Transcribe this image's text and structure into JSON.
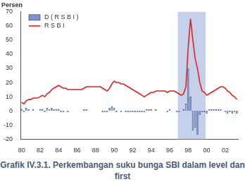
{
  "chart_data": {
    "type": "bar",
    "title": "Persen",
    "caption": "Grafik IV.3.1. Perkembangan suku bunga SBI dalam level dan first",
    "categories": [
      "80",
      null,
      null,
      null,
      null,
      null,
      null,
      null,
      "82",
      null,
      null,
      null,
      null,
      null,
      null,
      null,
      "84",
      null,
      null,
      null,
      null,
      null,
      null,
      null,
      "86",
      null,
      null,
      null,
      null,
      null,
      null,
      null,
      "88",
      null,
      null,
      null,
      null,
      null,
      null,
      null,
      "90",
      null,
      null,
      null,
      null,
      null,
      null,
      null,
      "92",
      null,
      null,
      null,
      null,
      null,
      null,
      null,
      "94",
      null,
      null,
      null,
      null,
      null,
      null,
      null,
      "96",
      null,
      null,
      null,
      null,
      null,
      null,
      null,
      "98",
      null,
      null,
      null,
      null,
      null,
      null,
      null,
      "00",
      null,
      null,
      null,
      null,
      null,
      null,
      null,
      "02",
      null,
      null,
      null,
      null,
      null
    ],
    "series": [
      {
        "name": "D ( R S B I )",
        "type": "bar",
        "color": "#7d93c9",
        "values": [
          1,
          -1,
          2,
          1,
          0,
          1,
          0,
          0,
          1,
          1,
          -1,
          2,
          1,
          2,
          1,
          1,
          1,
          -1,
          -1,
          0,
          -1,
          0,
          0,
          0,
          0,
          0,
          0,
          1,
          1,
          0,
          0,
          0,
          0,
          0,
          0,
          -1,
          -1,
          -1,
          2,
          3,
          2,
          -1,
          0,
          -1,
          0,
          -1,
          -1,
          -1,
          -1,
          -1,
          -1,
          -1,
          -1,
          -1,
          1,
          1,
          1,
          0,
          1,
          0,
          0,
          0,
          0,
          -1,
          1,
          0,
          0,
          -1,
          -1,
          0,
          1,
          5,
          30,
          10,
          -14,
          -12,
          -17,
          -3,
          -1,
          -1,
          -2,
          1,
          1,
          1,
          1,
          1,
          1,
          0,
          -1,
          -2,
          -1,
          -2,
          -1,
          -2
        ]
      },
      {
        "name": "R S B I",
        "type": "line",
        "color": "#e3231e",
        "values": [
          6,
          5,
          7,
          8,
          8,
          9,
          9,
          9,
          10,
          11,
          10,
          12,
          13,
          15,
          16,
          17,
          18,
          17,
          16,
          16,
          15,
          15,
          15,
          15,
          15,
          15,
          15,
          16,
          17,
          17,
          17,
          17,
          17,
          17,
          17,
          16,
          15,
          14,
          16,
          19,
          21,
          20,
          20,
          19,
          19,
          18,
          17,
          16,
          15,
          14,
          13,
          12,
          11,
          10,
          11,
          12,
          13,
          13,
          14,
          14,
          14,
          14,
          14,
          13,
          14,
          14,
          14,
          13,
          12,
          11,
          12,
          17,
          45,
          65,
          50,
          37,
          30,
          20,
          14,
          13,
          11,
          12,
          13,
          14,
          15,
          16,
          17,
          17,
          16,
          14,
          13,
          11,
          10,
          8
        ]
      }
    ],
    "highlight": {
      "start": 68,
      "end": 79,
      "color": "#c5d0ea"
    },
    "ylim": [
      -20,
      70
    ],
    "yticks": [
      -20,
      -10,
      0,
      10,
      20,
      30,
      40,
      50,
      60,
      70
    ],
    "grid": false,
    "legend": "upper left"
  }
}
